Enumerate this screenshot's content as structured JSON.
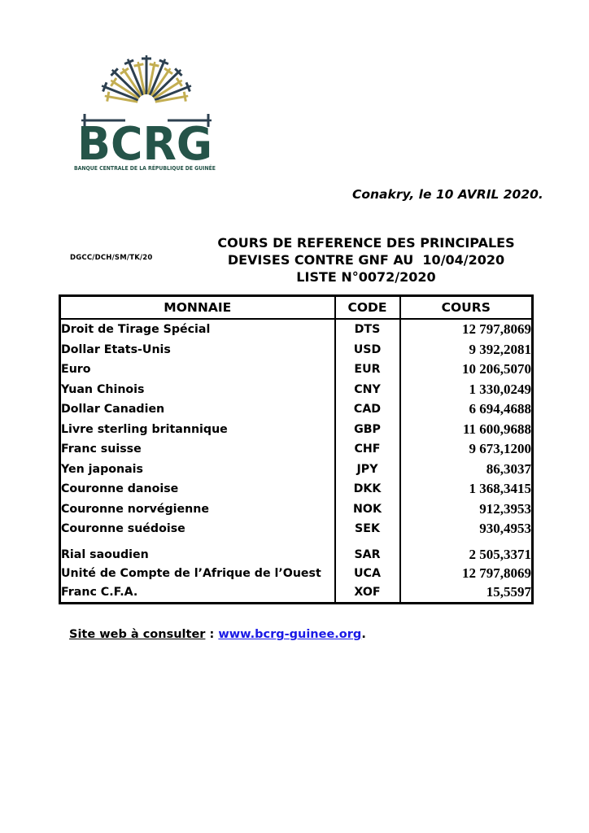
{
  "logo": {
    "acronym": "BCRG",
    "subtitle": "BANQUE CENTRALE DE LA RÉPUBLIQUE DE GUINÉE",
    "colors": {
      "dark_ray": "#2d4050",
      "gold_ray": "#c3ae52",
      "green_text": "#255449"
    }
  },
  "dateline": "Conakry, le 10 AVRIL 2020.",
  "reference": "DGCC/DCH/SM/TK/20",
  "title": {
    "lines": [
      "COURS DE REFERENCE DES PRINCIPALES",
      "DEVISES CONTRE GNF AU  10/04/2020",
      "LISTE N°0072/2020"
    ]
  },
  "table": {
    "headers": [
      "MONNAIE",
      "CODE",
      "COURS"
    ],
    "rows": [
      {
        "monnaie": "Droit de Tirage Spécial",
        "code": "DTS",
        "cours": "12 797,8069"
      },
      {
        "monnaie": "Dollar Etats-Unis",
        "code": "USD",
        "cours": "9 392,2081"
      },
      {
        "monnaie": "Euro",
        "code": "EUR",
        "cours": "10 206,5070"
      },
      {
        "monnaie": "Yuan Chinois",
        "code": "CNY",
        "cours": "1 330,0249"
      },
      {
        "monnaie": "Dollar Canadien",
        "code": "CAD",
        "cours": "6 694,4688"
      },
      {
        "monnaie": "Livre sterling britannique",
        "code": "GBP",
        "cours": "11 600,9688"
      },
      {
        "monnaie": "Franc suisse",
        "code": "CHF",
        "cours": "9 673,1200"
      },
      {
        "monnaie": "Yen japonais",
        "code": "JPY",
        "cours": "86,3037"
      },
      {
        "monnaie": "Couronne danoise",
        "code": "DKK",
        "cours": "1 368,3415"
      },
      {
        "monnaie": "Couronne norvégienne",
        "code": "NOK",
        "cours": "912,3953"
      },
      {
        "monnaie": "Couronne suédoise",
        "code": "SEK",
        "cours": "930,4953"
      },
      {
        "monnaie": "Rial saoudien",
        "code": "SAR",
        "cours": "2 505,3371"
      },
      {
        "monnaie": "Unité de Compte de l’Afrique de l’Ouest",
        "code": "UCA",
        "cours": "12 797,8069"
      },
      {
        "monnaie": "Franc C.F.A.",
        "code": "XOF",
        "cours": "15,5597"
      }
    ]
  },
  "footer": {
    "label": "Site web à consulter",
    "separator": " : ",
    "link": "www.bcrg-guinee.org",
    "period": ".",
    "link_color": "#1a1ae6"
  }
}
